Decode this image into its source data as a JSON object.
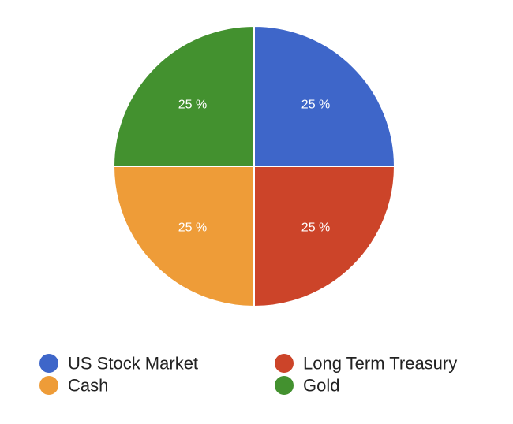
{
  "chart_data": {
    "type": "pie",
    "title": "",
    "slices": [
      {
        "label": "US Stock Market",
        "value": 25,
        "display": "25 %",
        "color": "#3e66c9"
      },
      {
        "label": "Long Term Treasury",
        "value": 25,
        "display": "25 %",
        "color": "#cc4429"
      },
      {
        "label": "Cash",
        "value": 25,
        "display": "25 %",
        "color": "#ee9c38"
      },
      {
        "label": "Gold",
        "value": 25,
        "display": "25 %",
        "color": "#43912f"
      }
    ],
    "legend_position": "bottom",
    "legend_order": [
      "US Stock Market",
      "Long Term Treasury",
      "Cash",
      "Gold"
    ]
  }
}
